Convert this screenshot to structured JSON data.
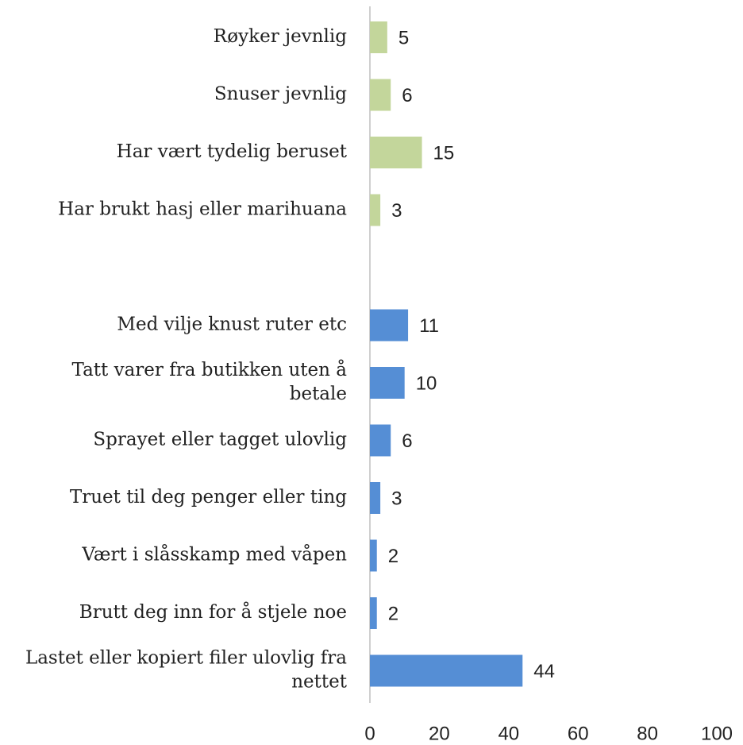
{
  "chart_data": {
    "type": "bar",
    "orientation": "horizontal",
    "categories": [
      "Røyker jevnlig",
      "Snuser jevnlig",
      "Har vært tydelig beruset",
      "Har brukt hasj eller marihuana",
      null,
      "Med vilje knust ruter etc",
      "Tatt varer fra butikken uten å betale",
      "Sprayet eller tagget ulovlig",
      "Truet til deg penger eller ting",
      "Vært i slåsskamp med våpen",
      "Brutt deg inn for å stjele noe",
      "Lastet eller kopiert filer ulovlig fra nettet"
    ],
    "values": [
      5,
      6,
      15,
      3,
      null,
      11,
      10,
      6,
      3,
      2,
      2,
      44
    ],
    "colors": [
      "#c3d69b",
      "#c3d69b",
      "#c3d69b",
      "#c3d69b",
      null,
      "#558ed5",
      "#558ed5",
      "#558ed5",
      "#558ed5",
      "#558ed5",
      "#558ed5",
      "#558ed5"
    ],
    "xlim": [
      0,
      100
    ],
    "xticks": [
      0,
      20,
      40,
      60,
      80,
      100
    ],
    "grid": false
  }
}
